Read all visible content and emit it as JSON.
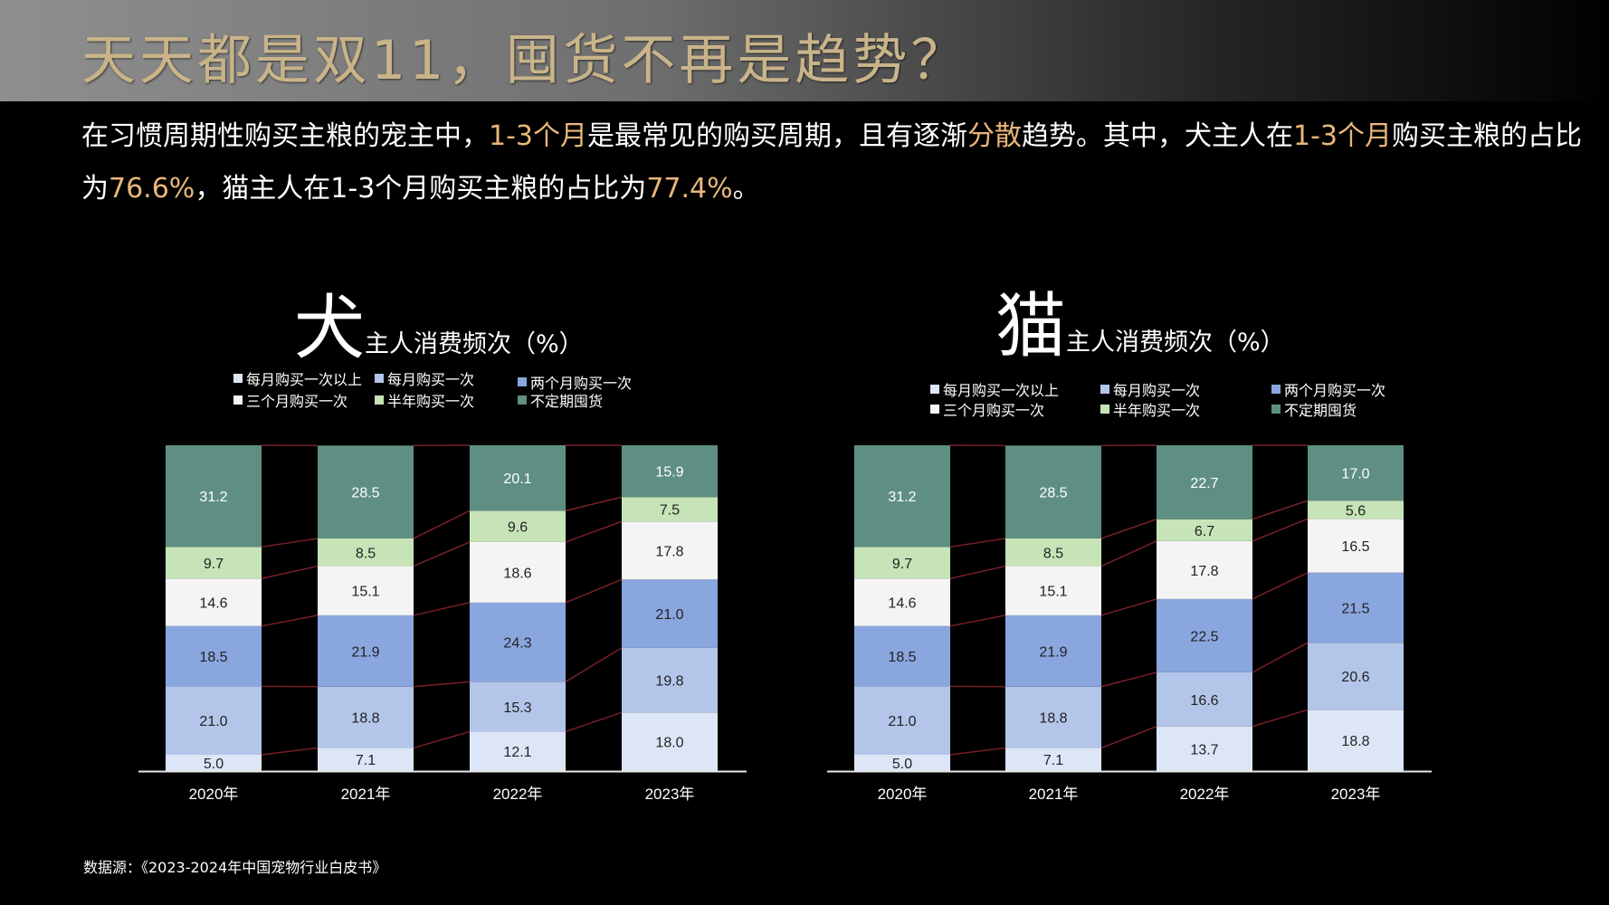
{
  "page": {
    "title": "天天都是双11，囤货不再是趋势？",
    "summary": [
      {
        "text": "在习惯周期性购买主粮的宠主中，",
        "hl": false
      },
      {
        "text": "1-3个月",
        "hl": true
      },
      {
        "text": "是最常见的购买周期，且有逐渐",
        "hl": false
      },
      {
        "text": "分散",
        "hl": true
      },
      {
        "text": "趋势。其中，犬主人在",
        "hl": false
      },
      {
        "text": "1-3个月",
        "hl": true
      },
      {
        "text": "购买主粮的占比为",
        "hl": false
      },
      {
        "text": "76.6%",
        "hl": true
      },
      {
        "text": "，猫主人在1-3个月购买主粮的占比为",
        "hl": false
      },
      {
        "text": "77.4%",
        "hl": true
      },
      {
        "text": "。",
        "hl": false
      }
    ],
    "source": "数据源：《2023-2024年中国宠物行业白皮书》"
  },
  "colors": {
    "highlight": "#e9b77b",
    "title": "#c9b48a",
    "connector": "#7a1f27"
  },
  "chart_data": [
    {
      "type": "bar",
      "stacked": true,
      "title_big": "犬",
      "title_rest": "主人消费频次（%）",
      "categories": [
        "2020年",
        "2021年",
        "2022年",
        "2023年"
      ],
      "ylim": [
        0,
        100
      ],
      "legend_position": "top",
      "series": [
        {
          "name": "每月购买一次以上",
          "color": "#dde6f6",
          "values": [
            5.0,
            7.1,
            12.1,
            18.0
          ]
        },
        {
          "name": "每月购买一次",
          "color": "#b3c5e9",
          "values": [
            21.0,
            18.8,
            15.3,
            19.8
          ]
        },
        {
          "name": "两个月购买一次",
          "color": "#8aa6df",
          "values": [
            18.5,
            21.9,
            24.3,
            21.0
          ]
        },
        {
          "name": "三个月购买一次",
          "color": "#f4f4f4",
          "values": [
            14.6,
            15.1,
            18.6,
            17.8
          ]
        },
        {
          "name": "半年购买一次",
          "color": "#c6e4b7",
          "values": [
            9.7,
            8.5,
            9.6,
            7.5
          ]
        },
        {
          "name": "不定期囤货",
          "color": "#5f8f83",
          "values": [
            31.2,
            28.5,
            20.1,
            15.9
          ]
        }
      ]
    },
    {
      "type": "bar",
      "stacked": true,
      "title_big": "猫",
      "title_rest": "主人消费频次（%）",
      "categories": [
        "2020年",
        "2021年",
        "2022年",
        "2023年"
      ],
      "ylim": [
        0,
        100
      ],
      "legend_position": "top",
      "series": [
        {
          "name": "每月购买一次以上",
          "color": "#dde6f6",
          "values": [
            5.0,
            7.1,
            13.7,
            18.8
          ]
        },
        {
          "name": "每月购买一次",
          "color": "#b3c5e9",
          "values": [
            21.0,
            18.8,
            16.6,
            20.6
          ]
        },
        {
          "name": "两个月购买一次",
          "color": "#8aa6df",
          "values": [
            18.5,
            21.9,
            22.5,
            21.5
          ]
        },
        {
          "name": "三个月购买一次",
          "color": "#f4f4f4",
          "values": [
            14.6,
            15.1,
            17.8,
            16.5
          ]
        },
        {
          "name": "半年购买一次",
          "color": "#c6e4b7",
          "values": [
            9.7,
            8.5,
            6.7,
            5.6
          ]
        },
        {
          "name": "不定期囤货",
          "color": "#5f8f83",
          "values": [
            31.2,
            28.5,
            22.7,
            17.0
          ]
        }
      ]
    }
  ]
}
